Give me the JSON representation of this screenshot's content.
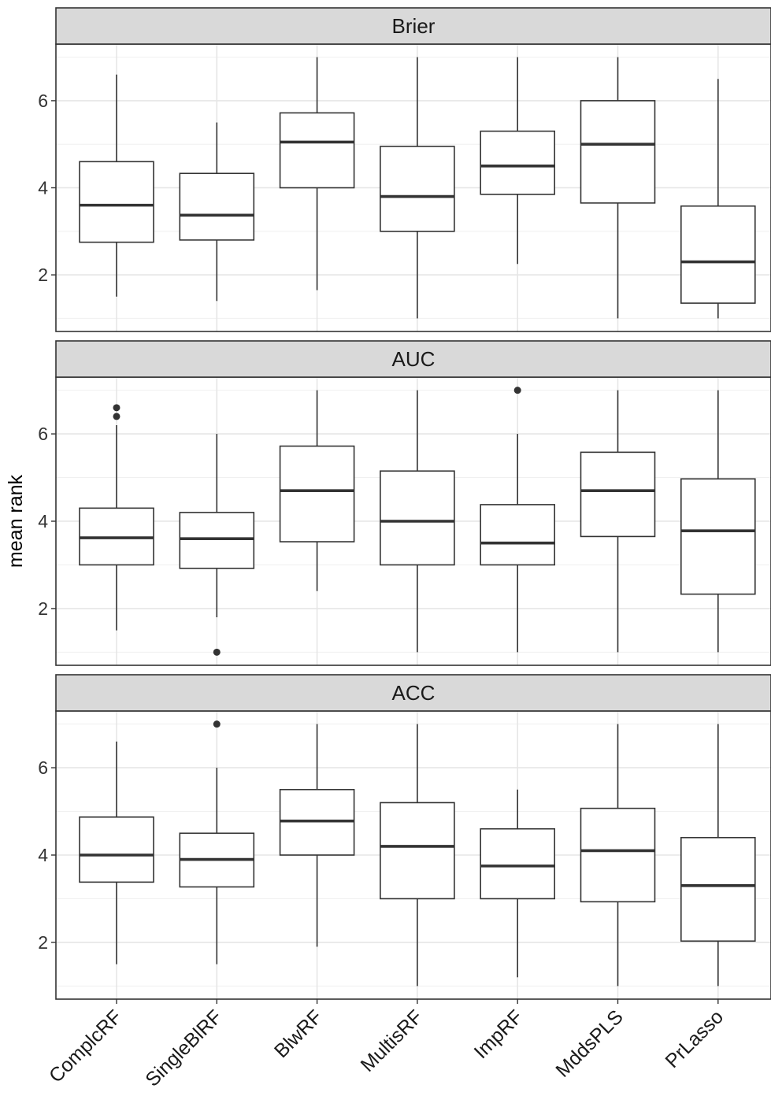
{
  "chart_data": {
    "type": "boxplot",
    "ylabel": "mean rank",
    "xlabel": "",
    "categories": [
      "ComplcRF",
      "SingleBlRF",
      "BlwRF",
      "MultisRF",
      "ImpRF",
      "MddsPLS",
      "PrLasso"
    ],
    "ylim": [
      0.7,
      7.3
    ],
    "yticks": [
      2,
      4,
      6
    ],
    "grid": true,
    "panels": [
      {
        "title": "Brier",
        "boxes": [
          {
            "category": "ComplcRF",
            "whisker_low": 1.5,
            "q1": 2.75,
            "median": 3.6,
            "q3": 4.6,
            "whisker_high": 6.6,
            "outliers": []
          },
          {
            "category": "SingleBlRF",
            "whisker_low": 1.4,
            "q1": 2.8,
            "median": 3.37,
            "q3": 4.33,
            "whisker_high": 5.5,
            "outliers": []
          },
          {
            "category": "BlwRF",
            "whisker_low": 1.65,
            "q1": 4.0,
            "median": 5.05,
            "q3": 5.72,
            "whisker_high": 7.0,
            "outliers": []
          },
          {
            "category": "MultisRF",
            "whisker_low": 1.0,
            "q1": 3.0,
            "median": 3.8,
            "q3": 4.95,
            "whisker_high": 7.0,
            "outliers": []
          },
          {
            "category": "ImpRF",
            "whisker_low": 2.25,
            "q1": 3.85,
            "median": 4.5,
            "q3": 5.3,
            "whisker_high": 7.0,
            "outliers": []
          },
          {
            "category": "MddsPLS",
            "whisker_low": 1.0,
            "q1": 3.65,
            "median": 5.0,
            "q3": 6.0,
            "whisker_high": 7.0,
            "outliers": []
          },
          {
            "category": "PrLasso",
            "whisker_low": 1.0,
            "q1": 1.35,
            "median": 2.3,
            "q3": 3.58,
            "whisker_high": 6.5,
            "outliers": []
          }
        ]
      },
      {
        "title": "AUC",
        "boxes": [
          {
            "category": "ComplcRF",
            "whisker_low": 1.5,
            "q1": 3.0,
            "median": 3.62,
            "q3": 4.3,
            "whisker_high": 6.2,
            "outliers": [
              6.4,
              6.6
            ]
          },
          {
            "category": "SingleBlRF",
            "whisker_low": 1.8,
            "q1": 2.92,
            "median": 3.6,
            "q3": 4.2,
            "whisker_high": 6.0,
            "outliers": [
              1.0
            ]
          },
          {
            "category": "BlwRF",
            "whisker_low": 2.4,
            "q1": 3.53,
            "median": 4.7,
            "q3": 5.72,
            "whisker_high": 7.0,
            "outliers": []
          },
          {
            "category": "MultisRF",
            "whisker_low": 1.0,
            "q1": 3.0,
            "median": 4.0,
            "q3": 5.15,
            "whisker_high": 7.0,
            "outliers": []
          },
          {
            "category": "ImpRF",
            "whisker_low": 1.0,
            "q1": 3.0,
            "median": 3.5,
            "q3": 4.38,
            "whisker_high": 6.0,
            "outliers": [
              7.0
            ]
          },
          {
            "category": "MddsPLS",
            "whisker_low": 1.0,
            "q1": 3.65,
            "median": 4.7,
            "q3": 5.58,
            "whisker_high": 7.0,
            "outliers": []
          },
          {
            "category": "PrLasso",
            "whisker_low": 1.0,
            "q1": 2.33,
            "median": 3.78,
            "q3": 4.97,
            "whisker_high": 7.0,
            "outliers": []
          }
        ]
      },
      {
        "title": "ACC",
        "boxes": [
          {
            "category": "ComplcRF",
            "whisker_low": 1.5,
            "q1": 3.38,
            "median": 4.0,
            "q3": 4.87,
            "whisker_high": 6.6,
            "outliers": []
          },
          {
            "category": "SingleBlRF",
            "whisker_low": 1.5,
            "q1": 3.27,
            "median": 3.9,
            "q3": 4.5,
            "whisker_high": 6.0,
            "outliers": [
              7.0
            ]
          },
          {
            "category": "BlwRF",
            "whisker_low": 1.9,
            "q1": 4.0,
            "median": 4.78,
            "q3": 5.5,
            "whisker_high": 7.0,
            "outliers": []
          },
          {
            "category": "MultisRF",
            "whisker_low": 1.0,
            "q1": 3.0,
            "median": 4.2,
            "q3": 5.2,
            "whisker_high": 7.0,
            "outliers": []
          },
          {
            "category": "ImpRF",
            "whisker_low": 1.2,
            "q1": 3.0,
            "median": 3.75,
            "q3": 4.6,
            "whisker_high": 5.5,
            "outliers": []
          },
          {
            "category": "MddsPLS",
            "whisker_low": 1.0,
            "q1": 2.93,
            "median": 4.1,
            "q3": 5.07,
            "whisker_high": 7.0,
            "outliers": []
          },
          {
            "category": "PrLasso",
            "whisker_low": 1.0,
            "q1": 2.03,
            "median": 3.3,
            "q3": 4.4,
            "whisker_high": 7.0,
            "outliers": []
          }
        ]
      }
    ]
  }
}
